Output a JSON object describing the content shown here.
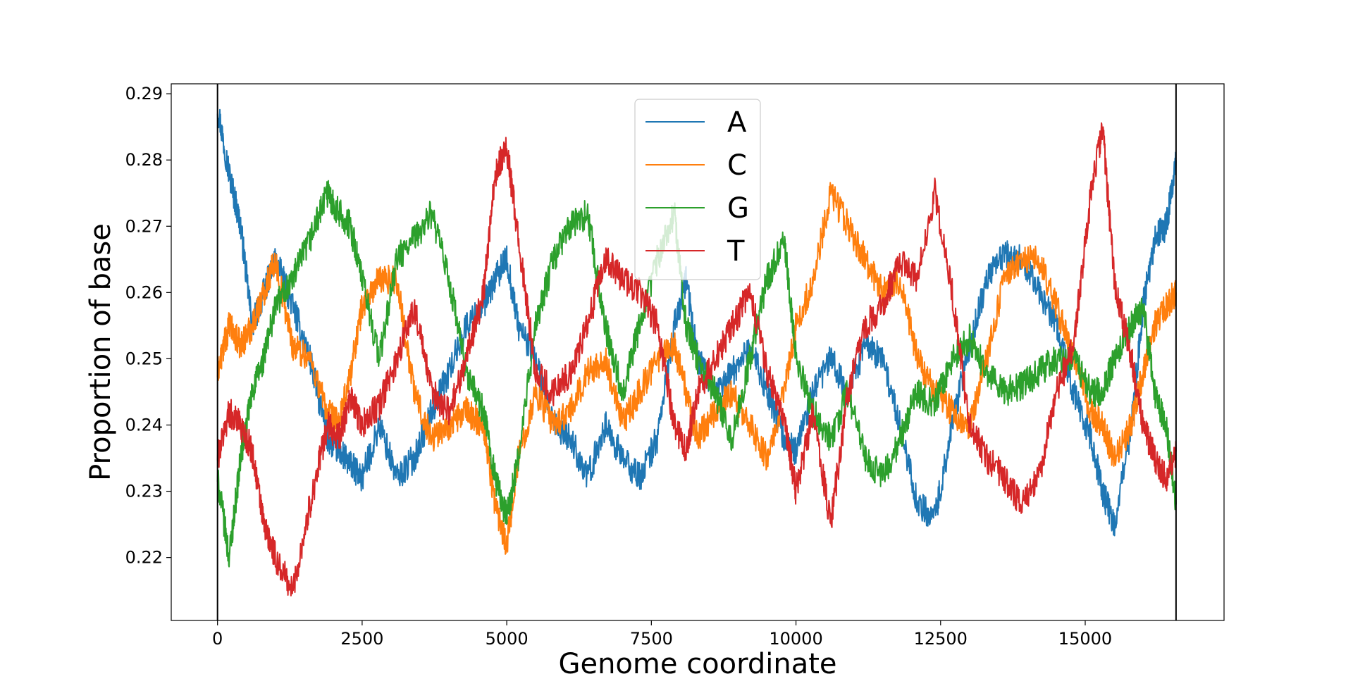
{
  "chart_data": {
    "type": "line",
    "title": "",
    "xlabel": "Genome coordinate",
    "ylabel": "Proportion of base",
    "xlim": [
      -800,
      17400
    ],
    "ylim": [
      0.2105,
      0.2915
    ],
    "xticks": [
      0,
      2500,
      5000,
      7500,
      10000,
      12500,
      15000
    ],
    "xtick_labels": [
      "0",
      "2500",
      "5000",
      "7500",
      "10000",
      "12500",
      "15000"
    ],
    "yticks": [
      0.22,
      0.23,
      0.24,
      0.25,
      0.26,
      0.27,
      0.28,
      0.29
    ],
    "ytick_labels": [
      "0.22",
      "0.23",
      "0.24",
      "0.25",
      "0.26",
      "0.27",
      "0.28",
      "0.29"
    ],
    "vertical_lines": [
      0,
      16570
    ],
    "grid": false,
    "legend_position": "upper-center",
    "series": [
      {
        "name": "A",
        "color": "#1f77b4",
        "x": [
          0,
          200,
          400,
          600,
          800,
          1000,
          1300,
          1600,
          1900,
          2100,
          2300,
          2500,
          2800,
          3100,
          3400,
          3700,
          4000,
          4300,
          4600,
          4800,
          5000,
          5200,
          5500,
          5800,
          6100,
          6400,
          6700,
          7000,
          7300,
          7600,
          7900,
          8100,
          8300,
          8600,
          8900,
          9200,
          9500,
          9800,
          10000,
          10300,
          10600,
          10900,
          11200,
          11500,
          11800,
          12100,
          12400,
          12700,
          13000,
          13300,
          13600,
          13900,
          14200,
          14500,
          14800,
          15100,
          15300,
          15500,
          15800,
          16000,
          16200,
          16400,
          16570
        ],
        "y": [
          0.288,
          0.278,
          0.27,
          0.255,
          0.26,
          0.265,
          0.258,
          0.25,
          0.238,
          0.236,
          0.234,
          0.232,
          0.24,
          0.232,
          0.235,
          0.242,
          0.248,
          0.255,
          0.258,
          0.262,
          0.265,
          0.255,
          0.25,
          0.24,
          0.238,
          0.232,
          0.24,
          0.235,
          0.232,
          0.238,
          0.255,
          0.262,
          0.25,
          0.245,
          0.248,
          0.252,
          0.245,
          0.238,
          0.236,
          0.245,
          0.25,
          0.245,
          0.252,
          0.25,
          0.24,
          0.228,
          0.226,
          0.24,
          0.252,
          0.262,
          0.266,
          0.265,
          0.26,
          0.255,
          0.245,
          0.238,
          0.23,
          0.225,
          0.24,
          0.258,
          0.268,
          0.27,
          0.28
        ]
      },
      {
        "name": "C",
        "color": "#ff7f0e",
        "x": [
          0,
          200,
          400,
          600,
          800,
          1000,
          1300,
          1600,
          1900,
          2100,
          2300,
          2500,
          2800,
          3100,
          3400,
          3700,
          4000,
          4300,
          4600,
          4800,
          5000,
          5200,
          5500,
          5800,
          6100,
          6400,
          6700,
          7000,
          7300,
          7600,
          7900,
          8100,
          8300,
          8600,
          8900,
          9200,
          9500,
          9800,
          10000,
          10300,
          10600,
          10900,
          11200,
          11500,
          11800,
          12100,
          12400,
          12700,
          13000,
          13300,
          13600,
          13900,
          14200,
          14500,
          14800,
          15100,
          15300,
          15500,
          15800,
          16000,
          16200,
          16400,
          16570
        ],
        "y": [
          0.248,
          0.255,
          0.252,
          0.255,
          0.26,
          0.265,
          0.252,
          0.25,
          0.242,
          0.24,
          0.248,
          0.258,
          0.262,
          0.262,
          0.245,
          0.238,
          0.24,
          0.242,
          0.24,
          0.228,
          0.222,
          0.235,
          0.245,
          0.24,
          0.242,
          0.248,
          0.25,
          0.24,
          0.245,
          0.25,
          0.252,
          0.245,
          0.238,
          0.242,
          0.245,
          0.24,
          0.235,
          0.245,
          0.255,
          0.262,
          0.275,
          0.27,
          0.265,
          0.26,
          0.262,
          0.25,
          0.245,
          0.242,
          0.24,
          0.25,
          0.262,
          0.265,
          0.265,
          0.258,
          0.25,
          0.242,
          0.24,
          0.235,
          0.24,
          0.248,
          0.255,
          0.258,
          0.26
        ]
      },
      {
        "name": "G",
        "color": "#2ca02c",
        "x": [
          0,
          200,
          400,
          600,
          800,
          1000,
          1300,
          1600,
          1900,
          2100,
          2300,
          2500,
          2800,
          3100,
          3400,
          3700,
          4000,
          4300,
          4600,
          4800,
          5000,
          5200,
          5500,
          5800,
          6100,
          6400,
          6700,
          7000,
          7300,
          7600,
          7900,
          8100,
          8300,
          8600,
          8900,
          9200,
          9500,
          9800,
          10000,
          10300,
          10600,
          10900,
          11200,
          11500,
          11800,
          12100,
          12400,
          12700,
          13000,
          13300,
          13600,
          13900,
          14200,
          14500,
          14800,
          15100,
          15300,
          15500,
          15800,
          16000,
          16200,
          16400,
          16570
        ],
        "y": [
          0.232,
          0.22,
          0.235,
          0.245,
          0.25,
          0.258,
          0.262,
          0.268,
          0.275,
          0.272,
          0.27,
          0.262,
          0.25,
          0.265,
          0.268,
          0.272,
          0.262,
          0.248,
          0.242,
          0.232,
          0.226,
          0.235,
          0.255,
          0.265,
          0.27,
          0.272,
          0.255,
          0.245,
          0.255,
          0.265,
          0.272,
          0.255,
          0.25,
          0.245,
          0.238,
          0.25,
          0.262,
          0.268,
          0.25,
          0.242,
          0.238,
          0.245,
          0.235,
          0.232,
          0.238,
          0.245,
          0.243,
          0.25,
          0.253,
          0.248,
          0.245,
          0.246,
          0.248,
          0.25,
          0.25,
          0.245,
          0.245,
          0.25,
          0.255,
          0.258,
          0.245,
          0.24,
          0.228
        ]
      },
      {
        "name": "T",
        "color": "#d62728",
        "x": [
          0,
          200,
          400,
          600,
          800,
          1000,
          1300,
          1600,
          1900,
          2100,
          2300,
          2500,
          2800,
          3100,
          3400,
          3700,
          4000,
          4300,
          4600,
          4800,
          5000,
          5200,
          5500,
          5800,
          6100,
          6400,
          6700,
          7000,
          7300,
          7600,
          7900,
          8100,
          8300,
          8600,
          8900,
          9200,
          9500,
          9800,
          10000,
          10300,
          10600,
          10900,
          11200,
          11500,
          11800,
          12100,
          12400,
          12700,
          13000,
          13300,
          13600,
          13900,
          14200,
          14500,
          14800,
          15100,
          15300,
          15500,
          15800,
          16000,
          16200,
          16400,
          16570
        ],
        "y": [
          0.235,
          0.242,
          0.24,
          0.236,
          0.225,
          0.22,
          0.215,
          0.228,
          0.24,
          0.238,
          0.244,
          0.24,
          0.243,
          0.25,
          0.258,
          0.245,
          0.242,
          0.25,
          0.26,
          0.278,
          0.282,
          0.268,
          0.248,
          0.245,
          0.248,
          0.255,
          0.265,
          0.262,
          0.26,
          0.255,
          0.24,
          0.236,
          0.245,
          0.25,
          0.255,
          0.26,
          0.248,
          0.24,
          0.23,
          0.242,
          0.225,
          0.245,
          0.255,
          0.258,
          0.265,
          0.262,
          0.275,
          0.26,
          0.24,
          0.235,
          0.232,
          0.228,
          0.232,
          0.245,
          0.252,
          0.275,
          0.285,
          0.262,
          0.25,
          0.24,
          0.235,
          0.232,
          0.236
        ]
      }
    ]
  }
}
